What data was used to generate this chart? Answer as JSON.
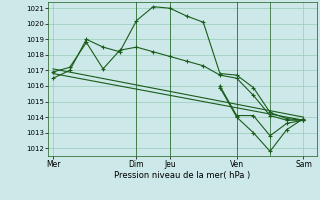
{
  "background_color": "#cce8e8",
  "grid_color": "#99ccbb",
  "line_color": "#1a5c1a",
  "yticks": [
    1012,
    1013,
    1014,
    1015,
    1016,
    1017,
    1018,
    1019,
    1020,
    1021
  ],
  "ylim": [
    1011.5,
    1021.4
  ],
  "xlabel": "Pression niveau de la mer( hPa )",
  "xtick_labels": [
    "Mer",
    "Dim",
    "Jeu",
    "Ven",
    "Sam"
  ],
  "xtick_positions": [
    0,
    5,
    7,
    11,
    15
  ],
  "xlim": [
    -0.3,
    15.8
  ],
  "series1": {
    "x": [
      0,
      1,
      2,
      3,
      4,
      5,
      6,
      7,
      8,
      9,
      10,
      11,
      12,
      13,
      14,
      15
    ],
    "y": [
      1016.5,
      1017.0,
      1019.0,
      1018.5,
      1018.2,
      1020.2,
      1021.1,
      1021.0,
      1020.5,
      1020.1,
      1016.8,
      1016.7,
      1015.9,
      1014.3,
      1013.9,
      1013.8
    ]
  },
  "series2": {
    "x": [
      0,
      1,
      2,
      3,
      4,
      5,
      6,
      7,
      8,
      9,
      10,
      11,
      12,
      13,
      14,
      15
    ],
    "y": [
      1016.9,
      1017.2,
      1018.8,
      1017.1,
      1018.3,
      1018.5,
      1018.2,
      1017.9,
      1017.6,
      1017.3,
      1016.7,
      1016.5,
      1015.4,
      1014.1,
      1013.8,
      1013.8
    ]
  },
  "series3_linear": {
    "x": [
      0,
      15
    ],
    "y": [
      1017.1,
      1014.0
    ]
  },
  "series4_linear": {
    "x": [
      0,
      15
    ],
    "y": [
      1016.8,
      1013.8
    ]
  },
  "series5": {
    "x": [
      10,
      11,
      12,
      13,
      14,
      15
    ],
    "y": [
      1016.0,
      1014.1,
      1014.1,
      1012.8,
      1013.6,
      1013.8
    ]
  },
  "series6": {
    "x": [
      10,
      11,
      12,
      13,
      14,
      15
    ],
    "y": [
      1015.9,
      1014.0,
      1013.0,
      1011.8,
      1013.2,
      1013.9
    ]
  },
  "vline_positions": [
    5,
    7,
    11,
    13
  ],
  "marker": "+",
  "markersize": 3,
  "linewidth": 0.8
}
